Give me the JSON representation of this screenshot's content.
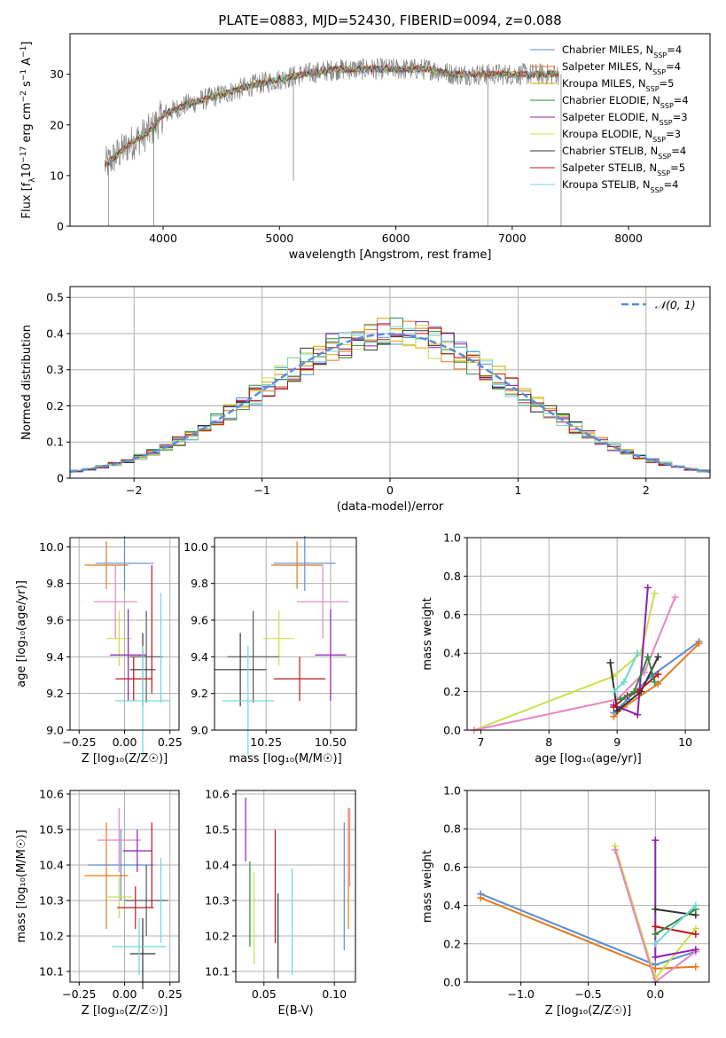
{
  "figure_title": "PLATE=0883, MJD=52430, FIBERID=0094, z=0.088",
  "colors": {
    "grid": "#b0b0b0",
    "spectrum": "#808080",
    "normal_curve": "#5b8bd6",
    "models": [
      "#5b8bd6",
      "#e6791a",
      "#d9a200",
      "#2f8b3b",
      "#8e1fb0",
      "#c9e04a",
      "#333333",
      "#c0141a",
      "#6fd6d6"
    ],
    "errorbars": [
      "#5b8bd6",
      "#e6791a",
      "#e884c0",
      "#c9e04a",
      "#8e1fb0",
      "#333333",
      "#c0141a",
      "#6fd6d6",
      "#555555"
    ]
  },
  "chart_data": [
    {
      "type": "line",
      "panel": "spectrum",
      "xlabel": "wavelength [Angstrom, rest frame]",
      "ylabel_parts": [
        "Flux [f",
        "λ",
        "10",
        "−17",
        " erg cm",
        "−2",
        " s",
        "−1",
        " A",
        "−1",
        "]"
      ],
      "xlim": [
        3200,
        8700
      ],
      "ylim": [
        0,
        38
      ],
      "xticks": [
        4000,
        5000,
        6000,
        7000,
        8000
      ],
      "yticks": [
        0,
        10,
        20,
        30
      ],
      "grid": false,
      "legend_position": "top-right",
      "legend": [
        {
          "name": "Chabrier MILES, N",
          "sub": "SSP",
          "tail": "=4",
          "color": "#5b8bd6"
        },
        {
          "name": "Salpeter MILES, N",
          "sub": "SSP",
          "tail": "=4",
          "color": "#e6791a"
        },
        {
          "name": "Kroupa MILES, N",
          "sub": "SSP",
          "tail": "=5",
          "color": "#d9a200"
        },
        {
          "name": "Chabrier ELODIE, N",
          "sub": "SSP",
          "tail": "=4",
          "color": "#2f8b3b"
        },
        {
          "name": "Salpeter ELODIE, N",
          "sub": "SSP",
          "tail": "=3",
          "color": "#8e1fb0"
        },
        {
          "name": "Kroupa ELODIE, N",
          "sub": "SSP",
          "tail": "=3",
          "color": "#c9e04a"
        },
        {
          "name": "Chabrier STELIB, N",
          "sub": "SSP",
          "tail": "=4",
          "color": "#333333"
        },
        {
          "name": "Salpeter STELIB, N",
          "sub": "SSP",
          "tail": "=5",
          "color": "#c0141a"
        },
        {
          "name": "Kroupa STELIB, N",
          "sub": "SSP",
          "tail": "=4",
          "color": "#6fd6d6"
        }
      ],
      "continuum": {
        "x": [
          3500,
          3700,
          3900,
          4000,
          4200,
          4500,
          4800,
          5000,
          5200,
          5500,
          5800,
          6000,
          6300,
          6500,
          6800,
          7000,
          7200,
          7400
        ],
        "y": [
          12,
          16,
          19,
          22,
          24,
          26,
          28,
          29,
          30,
          31,
          31,
          31,
          31,
          30,
          30,
          30,
          30,
          30
        ]
      },
      "spikes": [
        {
          "x": 3530,
          "y": 0
        },
        {
          "x": 3920,
          "y": 0
        },
        {
          "x": 5120,
          "y": 9
        },
        {
          "x": 6790,
          "y": 0
        },
        {
          "x": 7420,
          "y": 0
        }
      ]
    },
    {
      "type": "histogram",
      "panel": "residuals",
      "xlabel": "(data-model)/error",
      "ylabel": "Normed distribution",
      "xlim": [
        -2.5,
        2.5
      ],
      "ylim": [
        0,
        0.53
      ],
      "xticks": [
        -2,
        -1,
        0,
        1,
        2
      ],
      "yticks": [
        0.0,
        0.1,
        0.2,
        0.3,
        0.4,
        0.5
      ],
      "bin_width": 0.1,
      "grid": true,
      "legend_position": "top-right",
      "legend_label": "𝒩(0, 1)",
      "reference_curve": {
        "mean": 0,
        "sigma": 1,
        "style": "dashed"
      }
    },
    {
      "type": "scatter",
      "panel": "age-vs-Z",
      "xlabel": "Z [log₁₀(Z/Z☉)]",
      "ylabel": "age  [log₁₀(age/yr)]",
      "xlim": [
        -0.3,
        0.3
      ],
      "ylim": [
        9.0,
        10.05
      ],
      "xticks": [
        -0.25,
        0.0,
        0.25
      ],
      "xticklabels": [
        "−0.25",
        "0.00",
        "0.25"
      ],
      "yticks": [
        9.0,
        9.2,
        9.4,
        9.6,
        9.8,
        10.0
      ],
      "yticklabels": [
        "9.0",
        "9.2",
        "9.4",
        "9.6",
        "9.8",
        "10.0"
      ],
      "grid": true,
      "points": [
        {
          "x": 0.0,
          "xerr": 0.16,
          "y": 9.91,
          "yerr": 0.15,
          "color": "#5b8bd6"
        },
        {
          "x": -0.1,
          "xerr": 0.12,
          "y": 9.9,
          "yerr": 0.13,
          "color": "#e6791a"
        },
        {
          "x": -0.05,
          "xerr": 0.12,
          "y": 9.7,
          "yerr": 0.2,
          "color": "#e884c0"
        },
        {
          "x": -0.03,
          "xerr": 0.07,
          "y": 9.5,
          "yerr": 0.15,
          "color": "#c9e04a"
        },
        {
          "x": 0.02,
          "xerr": 0.1,
          "y": 9.41,
          "yerr": 0.25,
          "color": "#8e1fb0"
        },
        {
          "x": 0.12,
          "xerr": 0.09,
          "y": 9.4,
          "yerr": 0.25,
          "color": "#555555"
        },
        {
          "x": 0.05,
          "xerr": 0.1,
          "y": 9.28,
          "yerr": 0.12,
          "color": "#c0141a"
        },
        {
          "x": 0.1,
          "xerr": 0.07,
          "y": 9.33,
          "yerr": 0.2,
          "color": "#333333"
        },
        {
          "x": 0.1,
          "xerr": 0.15,
          "y": 9.16,
          "yerr": 0.3,
          "color": "#6fd6d6"
        },
        {
          "x": 0.15,
          "xerr": 0.0,
          "y": 9.55,
          "yerr": 0.35,
          "color": "#c0141a"
        },
        {
          "x": 0.2,
          "xerr": 0.0,
          "y": 9.45,
          "yerr": 0.3,
          "color": "#6fd6d6"
        }
      ]
    },
    {
      "type": "scatter",
      "panel": "age-vs-mass",
      "xlabel": "mass [log₁₀(M/M☉)]",
      "ylabel": "",
      "xlim": [
        10.05,
        10.6
      ],
      "ylim": [
        9.0,
        10.05
      ],
      "xticks": [
        10.25,
        10.5
      ],
      "xticklabels": [
        "10.25",
        "10.50"
      ],
      "yticks": [
        9.0,
        9.2,
        9.4,
        9.6,
        9.8,
        10.0
      ],
      "yticklabels": [
        "9.0",
        "9.2",
        "9.4",
        "9.6",
        "9.8",
        "10.0"
      ],
      "grid": true,
      "points": [
        {
          "x": 10.4,
          "xerr": 0.12,
          "y": 9.91,
          "yerr": 0.15,
          "color": "#5b8bd6"
        },
        {
          "x": 10.37,
          "xerr": 0.1,
          "y": 9.9,
          "yerr": 0.13,
          "color": "#e6791a"
        },
        {
          "x": 10.47,
          "xerr": 0.1,
          "y": 9.7,
          "yerr": 0.2,
          "color": "#e884c0"
        },
        {
          "x": 10.3,
          "xerr": 0.06,
          "y": 9.5,
          "yerr": 0.15,
          "color": "#c9e04a"
        },
        {
          "x": 10.5,
          "xerr": 0.06,
          "y": 9.41,
          "yerr": 0.25,
          "color": "#8e1fb0"
        },
        {
          "x": 10.2,
          "xerr": 0.1,
          "y": 9.4,
          "yerr": 0.25,
          "color": "#555555"
        },
        {
          "x": 10.38,
          "xerr": 0.1,
          "y": 9.28,
          "yerr": 0.12,
          "color": "#c0141a"
        },
        {
          "x": 10.15,
          "xerr": 0.1,
          "y": 9.33,
          "yerr": 0.2,
          "color": "#333333"
        },
        {
          "x": 10.18,
          "xerr": 0.1,
          "y": 9.16,
          "yerr": 0.3,
          "color": "#6fd6d6"
        }
      ]
    },
    {
      "type": "line",
      "panel": "weight-vs-age",
      "xlabel": "age  [log₁₀(age/yr)]",
      "ylabel": "mass weight",
      "xlim": [
        6.8,
        10.35
      ],
      "ylim": [
        0,
        1.0
      ],
      "xticks": [
        7,
        8,
        9,
        10
      ],
      "yticks": [
        0.0,
        0.2,
        0.4,
        0.6,
        0.8,
        1.0
      ],
      "yticklabels": [
        "0.0",
        "0.2",
        "0.4",
        "0.6",
        "0.8",
        "1.0"
      ],
      "grid": true,
      "series": [
        {
          "color": "#c9e04a",
          "x": [
            6.9,
            8.95,
            9.35,
            9.55
          ],
          "y": [
            0.0,
            0.28,
            0.4,
            0.71
          ]
        },
        {
          "color": "#e884c0",
          "x": [
            6.9,
            9.0,
            9.4,
            9.85
          ],
          "y": [
            0.0,
            0.16,
            0.3,
            0.69
          ]
        },
        {
          "color": "#5b8bd6",
          "x": [
            8.95,
            9.15,
            9.5,
            10.2
          ],
          "y": [
            0.09,
            0.16,
            0.28,
            0.46
          ]
        },
        {
          "color": "#e6791a",
          "x": [
            8.95,
            9.1,
            9.6,
            10.2
          ],
          "y": [
            0.07,
            0.12,
            0.24,
            0.45
          ]
        },
        {
          "color": "#8e1fb0",
          "x": [
            8.95,
            9.3,
            9.45
          ],
          "y": [
            0.13,
            0.08,
            0.74
          ]
        },
        {
          "color": "#333333",
          "x": [
            8.9,
            9.0,
            9.35,
            9.6
          ],
          "y": [
            0.35,
            0.1,
            0.2,
            0.38
          ]
        },
        {
          "color": "#c0141a",
          "x": [
            8.95,
            9.15,
            9.3,
            9.6
          ],
          "y": [
            0.12,
            0.18,
            0.2,
            0.29
          ]
        },
        {
          "color": "#2f8b3b",
          "x": [
            9.05,
            9.25,
            9.45,
            9.55
          ],
          "y": [
            0.16,
            0.2,
            0.38,
            0.25
          ]
        },
        {
          "color": "#6fd6d6",
          "x": [
            8.95,
            9.1,
            9.3
          ],
          "y": [
            0.2,
            0.25,
            0.4
          ]
        }
      ]
    },
    {
      "type": "scatter",
      "panel": "mass-vs-Z",
      "xlabel": "Z [log₁₀(Z/Z☉)]",
      "ylabel": "mass [log₁₀(M/M☉)]",
      "xlim": [
        -0.3,
        0.3
      ],
      "ylim": [
        10.07,
        10.61
      ],
      "xticks": [
        -0.25,
        0.0,
        0.25
      ],
      "xticklabels": [
        "−0.25",
        "0.00",
        "0.25"
      ],
      "yticks": [
        10.1,
        10.2,
        10.3,
        10.4,
        10.5,
        10.6
      ],
      "yticklabels": [
        "10.1",
        "10.2",
        "10.3",
        "10.4",
        "10.5",
        "10.6"
      ],
      "grid": true,
      "points": [
        {
          "x": -0.02,
          "xerr": 0.18,
          "y": 10.4,
          "yerr": 0.1,
          "color": "#5b8bd6"
        },
        {
          "x": -0.1,
          "xerr": 0.12,
          "y": 10.37,
          "yerr": 0.15,
          "color": "#e6791a"
        },
        {
          "x": -0.03,
          "xerr": 0.12,
          "y": 10.47,
          "yerr": 0.09,
          "color": "#e884c0"
        },
        {
          "x": -0.03,
          "xerr": 0.07,
          "y": 10.31,
          "yerr": 0.06,
          "color": "#c9e04a"
        },
        {
          "x": 0.07,
          "xerr": 0.08,
          "y": 10.44,
          "yerr": 0.06,
          "color": "#8e1fb0"
        },
        {
          "x": 0.12,
          "xerr": 0.12,
          "y": 10.3,
          "yerr": 0.1,
          "color": "#555555"
        },
        {
          "x": 0.06,
          "xerr": 0.1,
          "y": 10.28,
          "yerr": 0.06,
          "color": "#c0141a"
        },
        {
          "x": 0.1,
          "xerr": 0.07,
          "y": 10.15,
          "yerr": 0.1,
          "color": "#333333"
        },
        {
          "x": 0.08,
          "xerr": 0.15,
          "y": 10.17,
          "yerr": 0.08,
          "color": "#6fd6d6"
        },
        {
          "x": 0.15,
          "xerr": 0.0,
          "y": 10.4,
          "yerr": 0.12,
          "color": "#c0141a"
        },
        {
          "x": 0.2,
          "xerr": 0.0,
          "y": 10.3,
          "yerr": 0.12,
          "color": "#6fd6d6"
        }
      ]
    },
    {
      "type": "scatter",
      "panel": "mass-vs-EBV",
      "xlabel": "E(B-V)",
      "ylabel": "",
      "xlim": [
        0.03,
        0.115
      ],
      "ylim": [
        10.07,
        10.61
      ],
      "xticks": [
        0.05,
        0.1
      ],
      "xticklabels": [
        "0.05",
        "0.10"
      ],
      "yticks": [
        10.1,
        10.2,
        10.3,
        10.4,
        10.5,
        10.6
      ],
      "yticklabels": [
        "10.1",
        "10.2",
        "10.3",
        "10.4",
        "10.5",
        "10.6"
      ],
      "grid": true,
      "points": [
        {
          "x": 0.037,
          "xerr": 0.0,
          "y": 10.5,
          "yerr": 0.09,
          "color": "#8e1fb0"
        },
        {
          "x": 0.04,
          "xerr": 0.0,
          "y": 10.29,
          "yerr": 0.12,
          "color": "#2f8b3b"
        },
        {
          "x": 0.043,
          "xerr": 0.0,
          "y": 10.25,
          "yerr": 0.13,
          "color": "#c9e04a"
        },
        {
          "x": 0.058,
          "xerr": 0.0,
          "y": 10.34,
          "yerr": 0.16,
          "color": "#c0141a"
        },
        {
          "x": 0.06,
          "xerr": 0.0,
          "y": 10.2,
          "yerr": 0.12,
          "color": "#333333"
        },
        {
          "x": 0.07,
          "xerr": 0.0,
          "y": 10.24,
          "yerr": 0.15,
          "color": "#6fd6d6"
        },
        {
          "x": 0.107,
          "xerr": 0.0,
          "y": 10.34,
          "yerr": 0.18,
          "color": "#5b8bd6"
        },
        {
          "x": 0.11,
          "xerr": 0.0,
          "y": 10.39,
          "yerr": 0.17,
          "color": "#e6791a"
        },
        {
          "x": 0.111,
          "xerr": 0.0,
          "y": 10.45,
          "yerr": 0.11,
          "color": "#e884c0"
        }
      ]
    },
    {
      "type": "line",
      "panel": "weight-vs-Z",
      "xlabel": "Z [log₁₀(Z/Z☉)]",
      "ylabel": "mass weight",
      "xlim": [
        -1.4,
        0.4
      ],
      "ylim": [
        0,
        1.0
      ],
      "xticks": [
        -1.0,
        -0.5,
        0.0
      ],
      "xticklabels": [
        "−1.0",
        "−0.5",
        "0.0"
      ],
      "yticks": [
        0.0,
        0.2,
        0.4,
        0.6,
        0.8,
        1.0
      ],
      "yticklabels": [
        "0.0",
        "0.2",
        "0.4",
        "0.6",
        "0.8",
        "1.0"
      ],
      "grid": true,
      "series": [
        {
          "color": "#5b8bd6",
          "x": [
            -1.3,
            0.0,
            0.3
          ],
          "y": [
            0.46,
            0.09,
            0.16
          ]
        },
        {
          "color": "#e6791a",
          "x": [
            -1.3,
            0.0,
            0.3
          ],
          "y": [
            0.44,
            0.07,
            0.08
          ]
        },
        {
          "color": "#c9e04a",
          "x": [
            -0.3,
            0.0,
            0.3
          ],
          "y": [
            0.71,
            0.02,
            0.28
          ]
        },
        {
          "color": "#e884c0",
          "x": [
            -0.3,
            0.0,
            0.3
          ],
          "y": [
            0.69,
            0.0,
            0.16
          ]
        },
        {
          "color": "#8e1fb0",
          "x": [
            0.0,
            0.0,
            0.3
          ],
          "y": [
            0.74,
            0.13,
            0.17
          ]
        },
        {
          "color": "#333333",
          "x": [
            0.0,
            0.3
          ],
          "y": [
            0.38,
            0.35
          ]
        },
        {
          "color": "#c0141a",
          "x": [
            0.0,
            0.3
          ],
          "y": [
            0.29,
            0.25
          ]
        },
        {
          "color": "#2f8b3b",
          "x": [
            0.0,
            0.3
          ],
          "y": [
            0.25,
            0.38
          ]
        },
        {
          "color": "#6fd6d6",
          "x": [
            0.0,
            0.3
          ],
          "y": [
            0.2,
            0.4
          ]
        }
      ]
    }
  ]
}
